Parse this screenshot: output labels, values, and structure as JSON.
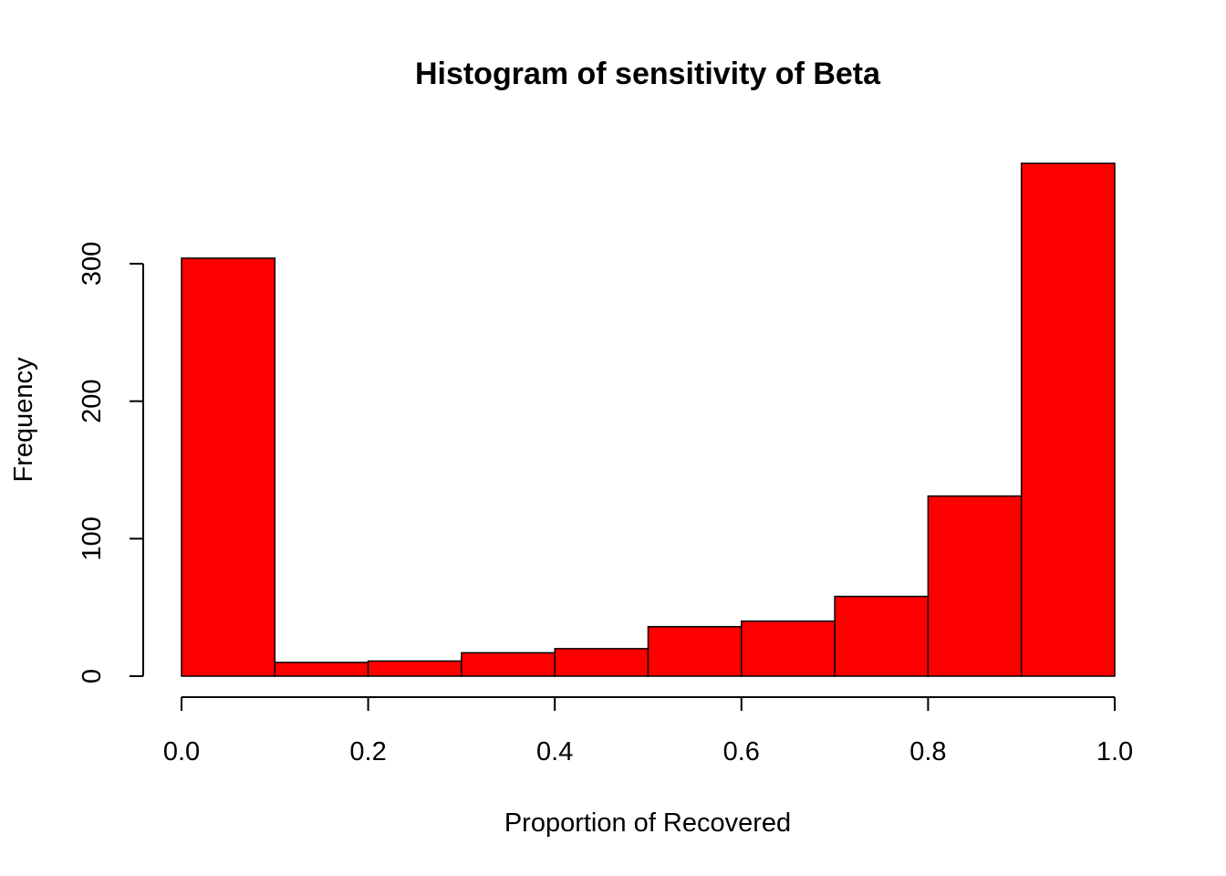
{
  "chart_data": {
    "type": "bar",
    "title": "Histogram of sensitivity of Beta",
    "xlabel": "Proportion of Recovered",
    "ylabel": "Frequency",
    "bin_edges": [
      0.0,
      0.1,
      0.2,
      0.3,
      0.4,
      0.5,
      0.6,
      0.7,
      0.8,
      0.9,
      1.0
    ],
    "values": [
      304,
      10,
      11,
      17,
      20,
      36,
      40,
      58,
      131,
      373
    ],
    "xlim": [
      0.0,
      1.0
    ],
    "ylim": [
      0,
      373
    ],
    "x_ticks": [
      "0.0",
      "0.2",
      "0.4",
      "0.6",
      "0.8",
      "1.0"
    ],
    "y_ticks": [
      "0",
      "100",
      "200",
      "300"
    ],
    "bar_color": "#ff0000",
    "grid": false
  }
}
